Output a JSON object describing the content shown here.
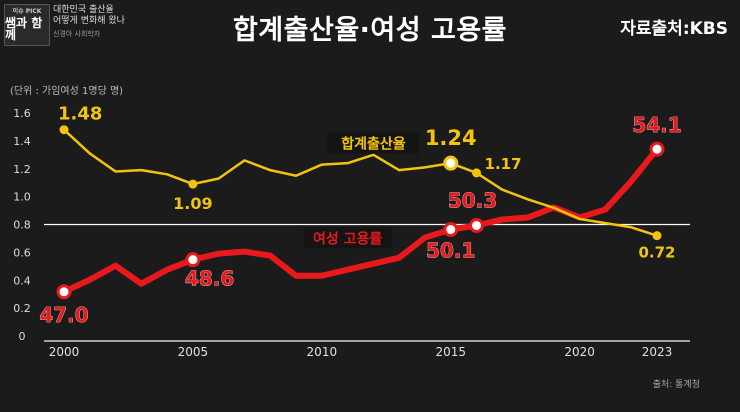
{
  "header": {
    "logo_small": "이슈 PICK",
    "logo_main": "쌤과 함께",
    "program_line1": "대한민국 출산율",
    "program_line2": "어떻게 변화해 왔나",
    "guest": "신경아 사회학자",
    "title": "합계출산율·여성 고용률",
    "source_top": "자료출처:KBS"
  },
  "unit": "(단위 : 가임여성 1명당 명)",
  "source_bottom": "출처: 통계청",
  "colors": {
    "fertility": "#f2c40f",
    "employment": "#e8191c",
    "background": "#1b1b1b"
  },
  "chart_data": {
    "type": "line",
    "xlim": [
      2000,
      2023
    ],
    "x_ticks": [
      2000,
      2005,
      2010,
      2015,
      2020,
      2023
    ],
    "ylim": [
      0,
      1.6
    ],
    "y_ticks": [
      "0",
      "0.2",
      "0.4",
      "0.6",
      "0.8",
      "1.0",
      "1.2",
      "1.4",
      "1.6"
    ],
    "reference_line": 0.8,
    "series": [
      {
        "name": "합계출산율",
        "color": "#f2c40f",
        "x": [
          2000,
          2001,
          2002,
          2003,
          2004,
          2005,
          2006,
          2007,
          2008,
          2009,
          2010,
          2011,
          2012,
          2013,
          2014,
          2015,
          2016,
          2017,
          2018,
          2019,
          2020,
          2021,
          2022,
          2023
        ],
        "y": [
          1.48,
          1.31,
          1.18,
          1.19,
          1.16,
          1.09,
          1.13,
          1.26,
          1.19,
          1.15,
          1.23,
          1.24,
          1.3,
          1.19,
          1.21,
          1.24,
          1.17,
          1.05,
          0.98,
          0.92,
          0.84,
          0.81,
          0.78,
          0.72
        ],
        "labels": [
          {
            "x": 2000,
            "text": "1.48"
          },
          {
            "x": 2005,
            "text": "1.09"
          },
          {
            "x": 2015,
            "text": "1.24"
          },
          {
            "x": 2016,
            "text": "1.17"
          },
          {
            "x": 2023,
            "text": "0.72"
          }
        ]
      },
      {
        "name": "여성 고용률",
        "color": "#e8191c",
        "x": [
          2000,
          2001,
          2002,
          2003,
          2004,
          2005,
          2006,
          2007,
          2008,
          2009,
          2010,
          2011,
          2012,
          2013,
          2014,
          2015,
          2016,
          2017,
          2018,
          2019,
          2020,
          2021,
          2022,
          2023
        ],
        "y": [
          47.0,
          47.6,
          48.3,
          47.4,
          48.1,
          48.6,
          48.9,
          49.0,
          48.8,
          47.8,
          47.8,
          48.1,
          48.4,
          48.7,
          49.7,
          50.1,
          50.3,
          50.6,
          50.7,
          51.2,
          50.7,
          51.1,
          52.5,
          54.1
        ],
        "labels": [
          {
            "x": 2000,
            "text": "47.0"
          },
          {
            "x": 2005,
            "text": "48.6"
          },
          {
            "x": 2015,
            "text": "50.1"
          },
          {
            "x": 2016,
            "text": "50.3"
          },
          {
            "x": 2023,
            "text": "54.1"
          }
        ]
      }
    ]
  }
}
